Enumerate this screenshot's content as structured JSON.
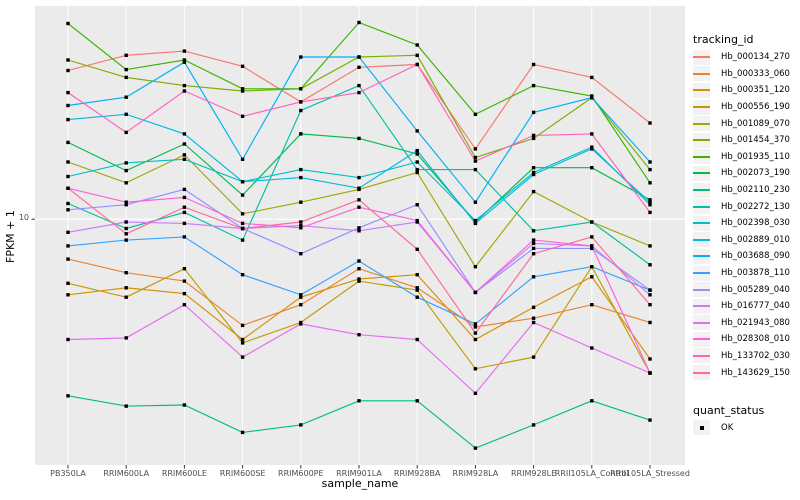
{
  "figure": {
    "y_axis": {
      "title": "FPKM + 1",
      "tick_labels": [
        "10"
      ]
    },
    "x_axis": {
      "title": "sample_name"
    },
    "legend": {
      "tracking_title": "tracking_id",
      "quant_title": "quant_status",
      "quant_items": [
        {
          "label": "OK",
          "marker": "black-square"
        }
      ]
    }
  },
  "chart_data": {
    "type": "line",
    "title": "",
    "xlabel": "sample_name",
    "ylabel": "FPKM + 1",
    "yscale": "log10",
    "ylim": [
      1.7,
      46.5
    ],
    "y_ticks": [
      10
    ],
    "grid": "white-on-gray",
    "panel_bg": "#EBEBEB",
    "grid_color": "#FFFFFF",
    "marker": "black-square",
    "legend_position": "right",
    "categories": [
      "PB350LA",
      "RRIM600LA",
      "RRIM600LE",
      "RRIM600SE",
      "RRIM600PE",
      "RRIM901LA",
      "RRIM928BA",
      "RRIM928LA",
      "RRIM928LE",
      "RRII105LA_Control",
      "RRII105LA_Stressed"
    ],
    "series": [
      {
        "name": "Hb_000134_270",
        "color": "#F8766D",
        "values": [
          29.2,
          32.6,
          33.6,
          30.1,
          23.3,
          29.9,
          30.5,
          16.6,
          30.5,
          27.8,
          20.0
        ]
      },
      {
        "name": "Hb_000333_060",
        "color": "#EA8331",
        "values": [
          7.5,
          6.8,
          6.4,
          4.65,
          5.4,
          7.0,
          6.1,
          4.6,
          4.9,
          5.4,
          4.75
        ]
      },
      {
        "name": "Hb_000351_120",
        "color": "#D89000",
        "values": [
          5.8,
          6.1,
          5.85,
          4.2,
          5.7,
          6.5,
          6.7,
          4.2,
          5.3,
          6.6,
          3.65
        ]
      },
      {
        "name": "Hb_000556_190",
        "color": "#C09B00",
        "values": [
          6.3,
          5.7,
          7.0,
          4.1,
          4.75,
          6.4,
          6.0,
          3.4,
          3.7,
          7.1,
          3.3
        ]
      },
      {
        "name": "Hb_001089_070",
        "color": "#A3A500",
        "values": [
          15.1,
          13.0,
          15.9,
          10.4,
          11.3,
          12.4,
          14.0,
          7.1,
          12.2,
          9.8,
          8.25
        ]
      },
      {
        "name": "Hb_001454_370",
        "color": "#7CAE00",
        "values": [
          31.5,
          27.8,
          26.2,
          25.2,
          25.6,
          32.2,
          32.6,
          15.6,
          17.9,
          24.0,
          14.3
        ]
      },
      {
        "name": "Hb_001935_110",
        "color": "#39B600",
        "values": [
          41.0,
          29.4,
          31.5,
          25.6,
          25.6,
          41.3,
          35.1,
          21.3,
          26.2,
          24.3,
          13.0
        ]
      },
      {
        "name": "Hb_002073_190",
        "color": "#00BB4E",
        "values": [
          17.4,
          14.2,
          17.2,
          11.9,
          18.5,
          17.9,
          16.0,
          9.8,
          14.5,
          14.5,
          11.5
        ]
      },
      {
        "name": "Hb_002110_230",
        "color": "#00BF7D",
        "values": [
          2.8,
          2.6,
          2.62,
          2.15,
          2.27,
          2.7,
          2.7,
          1.92,
          2.27,
          2.7,
          2.35
        ]
      },
      {
        "name": "Hb_002272_130",
        "color": "#00C1A3",
        "values": [
          11.2,
          9.35,
          10.5,
          8.6,
          21.9,
          26.2,
          14.3,
          14.3,
          9.2,
          9.8,
          7.2
        ]
      },
      {
        "name": "Hb_002398_030",
        "color": "#00BFC4",
        "values": [
          13.6,
          15.0,
          15.4,
          13.1,
          14.3,
          13.5,
          15.1,
          9.9,
          14.0,
          16.8,
          11.1
        ]
      },
      {
        "name": "Hb_002889_010",
        "color": "#00BAE0",
        "values": [
          20.5,
          21.3,
          18.5,
          13.1,
          13.5,
          12.5,
          16.4,
          9.7,
          13.8,
          16.6,
          11.3
        ]
      },
      {
        "name": "Hb_003688_090",
        "color": "#00B0F6",
        "values": [
          22.7,
          24.1,
          31.0,
          15.4,
          32.2,
          32.2,
          18.9,
          11.3,
          21.6,
          24.0,
          15.1
        ]
      },
      {
        "name": "Hb_003878_110",
        "color": "#35A2FF",
        "values": [
          8.25,
          8.6,
          8.8,
          6.7,
          5.8,
          7.4,
          5.7,
          4.7,
          6.6,
          7.1,
          6.0
        ]
      },
      {
        "name": "Hb_005289_040",
        "color": "#9590FF",
        "values": [
          10.7,
          11.1,
          12.4,
          9.35,
          7.8,
          9.4,
          11.1,
          5.9,
          8.1,
          8.1,
          6.0
        ]
      },
      {
        "name": "Hb_016777_040",
        "color": "#C77CFF",
        "values": [
          9.1,
          9.8,
          9.7,
          9.35,
          9.55,
          9.2,
          9.8,
          5.9,
          8.4,
          8.25,
          5.8
        ]
      },
      {
        "name": "Hb_021943_080",
        "color": "#E76BF3",
        "values": [
          4.2,
          4.25,
          5.4,
          3.7,
          4.7,
          4.35,
          4.2,
          2.85,
          4.75,
          3.95,
          3.3
        ]
      },
      {
        "name": "Hb_028308_010",
        "color": "#FA62DB",
        "values": [
          12.5,
          11.3,
          11.7,
          9.7,
          9.4,
          10.9,
          9.9,
          5.9,
          8.6,
          8.25,
          3.3
        ]
      },
      {
        "name": "Hb_133702_030",
        "color": "#FF62BC",
        "values": [
          24.9,
          18.7,
          25.2,
          21.0,
          23.3,
          24.9,
          30.5,
          15.2,
          18.3,
          18.5,
          10.5
        ]
      },
      {
        "name": "Hb_143629_150",
        "color": "#FF6A98",
        "values": [
          12.5,
          9.0,
          10.9,
          9.35,
          9.8,
          11.5,
          8.05,
          4.4,
          7.8,
          8.8,
          5.4
        ]
      }
    ]
  }
}
